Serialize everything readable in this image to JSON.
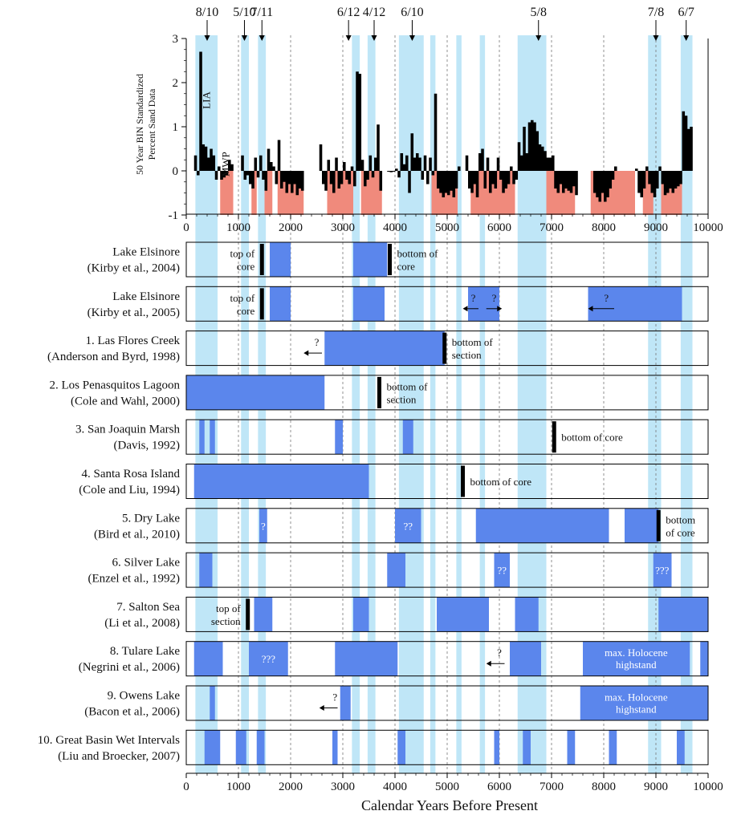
{
  "chart_data": {
    "type": "bar",
    "xlabel": "Calendar Years Before Present",
    "ylabel_line1": "50 Year BIN Standardized",
    "ylabel_line2": "Percent Sand Data",
    "xlim": [
      0,
      10000
    ],
    "ylim": [
      -1,
      3
    ],
    "x_ticks": [
      0,
      1000,
      2000,
      3000,
      4000,
      5000,
      6000,
      7000,
      8000,
      9000,
      10000
    ],
    "y_ticks": [
      -1,
      0,
      1,
      2,
      3
    ],
    "colors": {
      "bar": "#000000",
      "dry": "#f08a7c",
      "wet_highlight": "#bfe6f7",
      "wet_interval": "#5b86ec"
    },
    "highlight_bands": [
      [
        175,
        600
      ],
      [
        1050,
        1200
      ],
      [
        1375,
        1525
      ],
      [
        3175,
        3325
      ],
      [
        3475,
        3625
      ],
      [
        4075,
        4550
      ],
      [
        4675,
        4775
      ],
      [
        5175,
        5275
      ],
      [
        5625,
        5725
      ],
      [
        6350,
        6900
      ],
      [
        8850,
        9100
      ],
      [
        9475,
        9700
      ]
    ],
    "top_annotations": [
      {
        "label": "8/10",
        "x": 400
      },
      {
        "label": "5/10",
        "x": 1115
      },
      {
        "label": "7/11",
        "x": 1450
      },
      {
        "label": "6/12",
        "x": 3110
      },
      {
        "label": "4/12",
        "x": 3600
      },
      {
        "label": "6/10",
        "x": 4330
      },
      {
        "label": "5/8",
        "x": 6750
      },
      {
        "label": "7/8",
        "x": 9000
      },
      {
        "label": "6/7",
        "x": 9580
      }
    ],
    "panel_labels": [
      {
        "text": "LIA",
        "x": 450,
        "y": 1.6
      },
      {
        "text": "MWP",
        "x": 820,
        "y": 0.15
      }
    ],
    "dry_bands": [
      [
        650,
        900
      ],
      [
        1250,
        1350
      ],
      [
        1500,
        1650
      ],
      [
        1750,
        2250
      ],
      [
        2700,
        3200
      ],
      [
        3350,
        3750
      ],
      [
        4700,
        5200
      ],
      [
        5450,
        6300
      ],
      [
        6900,
        7450
      ],
      [
        7750,
        8600
      ],
      [
        8750,
        8950
      ],
      [
        9100,
        9500
      ]
    ],
    "series": [
      {
        "x": [
          175,
          225,
          275,
          325,
          375,
          425,
          475,
          525,
          575,
          625,
          675,
          725,
          775,
          825,
          875,
          1075,
          1125,
          1175,
          1225,
          1275,
          1325,
          1375,
          1425,
          1475,
          1525,
          1575,
          1625,
          1675,
          1725,
          1775,
          1825,
          1875,
          1925,
          1975,
          2025,
          2075,
          2125,
          2175,
          2225
        ],
        "values": [
          0.35,
          -0.1,
          2.7,
          0.6,
          0.55,
          0.3,
          0.5,
          0.35,
          -0.2,
          0.1,
          -0.2,
          -0.15,
          -0.1,
          0.25,
          0.15,
          0.35,
          -0.2,
          -0.1,
          -0.3,
          -0.4,
          0.3,
          -0.15,
          0.35,
          -0.2,
          -0.45,
          0.5,
          0.2,
          0.1,
          -0.3,
          0.7,
          -0.4,
          -0.25,
          -0.5,
          -0.3,
          -0.5,
          -0.3,
          -0.55,
          -0.4,
          -0.45
        ]
      },
      {
        "x": [
          2575,
          2625,
          2675,
          2725,
          2775,
          2825,
          2875,
          2925,
          2975,
          3025,
          3075,
          3125,
          3175,
          3225,
          3275,
          3325,
          3375,
          3425,
          3475,
          3525,
          3575,
          3625,
          3675,
          3725
        ],
        "values": [
          0.6,
          -0.3,
          -0.45,
          0.25,
          -0.3,
          -0.5,
          0.3,
          -0.4,
          -0.3,
          0.2,
          -0.2,
          -0.3,
          0.1,
          -0.35,
          2.25,
          2.2,
          0.25,
          -0.35,
          -0.2,
          0.35,
          -0.15,
          0.3,
          1.05,
          -0.45
        ]
      },
      {
        "x": [
          3875,
          3925,
          3975,
          4025,
          4075,
          4125,
          4175,
          4225,
          4275,
          4325,
          4375,
          4425,
          4475,
          4525,
          4575,
          4625,
          4675,
          4725,
          4775,
          4825,
          4875,
          4925,
          4975,
          5025,
          5075,
          5125,
          5175,
          5225
        ],
        "values": [
          -0.02,
          -0.03,
          -0.02,
          0.05,
          -0.15,
          0.4,
          0.15,
          0.35,
          -0.5,
          0.85,
          0.3,
          0.4,
          0.3,
          -0.2,
          0.35,
          -0.3,
          0.3,
          -0.1,
          1.75,
          -0.4,
          -0.5,
          -0.6,
          -0.5,
          -0.55,
          -0.45,
          -0.6,
          -0.4,
          0.1
        ]
      },
      {
        "x": [
          5375,
          5425,
          5475,
          5525,
          5575,
          5625,
          5675,
          5725,
          5775,
          5825,
          5875,
          5925,
          5975,
          6025,
          6075,
          6125,
          6175,
          6225,
          6275,
          6325,
          6375,
          6425,
          6475,
          6525,
          6575,
          6625,
          6675,
          6725,
          6775,
          6825,
          6875,
          6925,
          6975,
          7025,
          7075,
          7125,
          7175,
          7225,
          7275,
          7325,
          7375,
          7425,
          7475
        ],
        "values": [
          0.35,
          -0.4,
          -0.5,
          -0.3,
          -0.6,
          0.4,
          0.5,
          -0.4,
          0.3,
          -0.5,
          -0.3,
          -0.4,
          0.3,
          -0.2,
          -0.5,
          -0.4,
          -0.3,
          0.1,
          -0.3,
          -0.2,
          0.65,
          0.35,
          1.0,
          0.4,
          1.1,
          1.15,
          1.1,
          0.9,
          0.6,
          0.55,
          0.45,
          0.3,
          0.3,
          0.35,
          -0.4,
          -0.5,
          -0.3,
          -0.5,
          -0.4,
          -0.45,
          -0.5,
          -0.35,
          -0.55
        ]
      },
      {
        "x": [
          7825,
          7875,
          7925,
          7975,
          8025,
          8075,
          8125,
          8175,
          8225
        ],
        "values": [
          -0.5,
          -0.6,
          -0.7,
          -0.5,
          -0.7,
          -0.6,
          -0.4,
          -0.2,
          0.1
        ]
      },
      {
        "x": [
          8625,
          8675,
          8725,
          8775,
          8825,
          8875,
          8925,
          8975,
          9025,
          9075,
          9125,
          9175,
          9225,
          9275,
          9325,
          9375,
          9425,
          9475,
          9525,
          9575,
          9625,
          9675
        ],
        "values": [
          0.05,
          -0.5,
          -0.6,
          -0.4,
          0.1,
          -0.3,
          -0.5,
          -0.6,
          -0.4,
          0.1,
          -0.3,
          -0.55,
          -0.5,
          -0.4,
          -0.5,
          -0.4,
          -0.35,
          -0.3,
          1.35,
          1.25,
          0.95,
          1.0
        ]
      }
    ],
    "rows": [
      {
        "name": "Lake Elsinore",
        "cite": "(Kirby et al., 2004)",
        "intervals": [
          [
            1600,
            2000
          ],
          [
            3200,
            3850
          ]
        ],
        "markers": [
          {
            "x": 1450,
            "side": "left",
            "lines": [
              "top of",
              "core"
            ]
          },
          {
            "x": 3900,
            "side": "right",
            "lines": [
              "bottom of",
              "core"
            ]
          }
        ],
        "qmarks": [],
        "arrows": []
      },
      {
        "name": "Lake Elsinore",
        "cite": "(Kirby et al., 2005)",
        "intervals": [
          [
            1600,
            2000
          ],
          [
            3200,
            3800
          ],
          [
            5400,
            6000
          ],
          [
            7700,
            9500
          ]
        ],
        "markers": [
          {
            "x": 1450,
            "side": "left",
            "lines": [
              "top of",
              "core"
            ]
          }
        ],
        "qmarks": [
          {
            "x": 5500,
            "text": "?",
            "dark": true
          },
          {
            "x": 5900,
            "text": "?",
            "dark": true
          },
          {
            "x": 8050,
            "text": "?",
            "dark": true
          }
        ],
        "arrows": [
          {
            "from": 5600,
            "to": 5300
          },
          {
            "from": 5750,
            "to": 6050
          },
          {
            "from": 8200,
            "to": 7700
          }
        ]
      },
      {
        "name": "1. Las Flores Creek",
        "cite": "(Anderson and Byrd, 1998)",
        "intervals": [
          [
            2650,
            4950
          ]
        ],
        "markers": [
          {
            "x": 4950,
            "side": "right",
            "lines": [
              "bottom of",
              "section"
            ]
          }
        ],
        "qmarks": [
          {
            "x": 2500,
            "text": "?",
            "dark": true
          }
        ],
        "arrows": [
          {
            "from": 2600,
            "to": 2250
          }
        ]
      },
      {
        "name": "2. Los Penasquitos Lagoon",
        "cite": "(Cole and Wahl, 2000)",
        "intervals": [
          [
            0,
            2650
          ]
        ],
        "markers": [
          {
            "x": 3700,
            "side": "right",
            "lines": [
              "bottom of",
              "section"
            ]
          }
        ],
        "qmarks": [],
        "arrows": []
      },
      {
        "name": "3. San Joaquin Marsh",
        "cite": "(Davis, 1992)",
        "intervals": [
          [
            250,
            350
          ],
          [
            450,
            550
          ],
          [
            2850,
            3000
          ],
          [
            4150,
            4350
          ]
        ],
        "markers": [
          {
            "x": 7050,
            "side": "right",
            "lines": [
              "bottom of core"
            ]
          }
        ],
        "qmarks": [],
        "arrows": []
      },
      {
        "name": "4. Santa Rosa Island",
        "cite": "(Cole and Liu, 1994)",
        "intervals": [
          [
            150,
            3500
          ]
        ],
        "markers": [
          {
            "x": 5300,
            "side": "right",
            "lines": [
              "bottom of core"
            ]
          }
        ],
        "qmarks": [],
        "arrows": []
      },
      {
        "name": "5. Dry Lake",
        "cite": "(Bird et al., 2010)",
        "intervals": [
          [
            1400,
            1550
          ],
          [
            4000,
            4500
          ],
          [
            5550,
            8100
          ],
          [
            8400,
            9050
          ]
        ],
        "markers": [
          {
            "x": 9050,
            "side": "right",
            "lines": [
              "bottom",
              "of core"
            ]
          }
        ],
        "qmarks": [
          {
            "x": 1475,
            "text": "?",
            "dark": false
          },
          {
            "x": 4250,
            "text": "??",
            "dark": false
          }
        ],
        "arrows": []
      },
      {
        "name": "6. Silver Lake",
        "cite": "(Enzel et al., 1992)",
        "intervals": [
          [
            250,
            500
          ],
          [
            3850,
            4200
          ],
          [
            5900,
            6200
          ],
          [
            8950,
            9300
          ]
        ],
        "markers": [],
        "qmarks": [
          {
            "x": 6050,
            "text": "??",
            "dark": false
          },
          {
            "x": 9120,
            "text": "???",
            "dark": false
          }
        ],
        "arrows": []
      },
      {
        "name": "7. Salton Sea",
        "cite": "(Li et al., 2008)",
        "intervals": [
          [
            1300,
            1650
          ],
          [
            3200,
            3500
          ],
          [
            4800,
            5800
          ],
          [
            6300,
            6750
          ],
          [
            9050,
            10000
          ]
        ],
        "markers": [
          {
            "x": 1180,
            "side": "left",
            "lines": [
              "top of",
              "section"
            ]
          }
        ],
        "qmarks": [],
        "arrows": []
      },
      {
        "name": "8. Tulare Lake",
        "cite": "(Negrini et al., 2006)",
        "intervals": [
          [
            150,
            700
          ],
          [
            1200,
            1950
          ],
          [
            2850,
            4050
          ],
          [
            6200,
            6800
          ],
          [
            7600,
            9650
          ],
          [
            9850,
            10000
          ]
        ],
        "markers": [],
        "qmarks": [
          {
            "x": 1575,
            "text": "???",
            "dark": false
          },
          {
            "x": 6000,
            "text": "?",
            "dark": true
          }
        ],
        "arrows": [
          {
            "from": 6100,
            "to": 5750
          }
        ],
        "box_text": {
          "lines": [
            "max. Holocene",
            "highstand"
          ],
          "x": 8620
        }
      },
      {
        "name": "9. Owens Lake",
        "cite": "(Bacon et al., 2006)",
        "intervals": [
          [
            450,
            550
          ],
          [
            2950,
            3150
          ],
          [
            7550,
            10000
          ]
        ],
        "markers": [],
        "qmarks": [
          {
            "x": 2850,
            "text": "?",
            "dark": true
          }
        ],
        "arrows": [
          {
            "from": 2900,
            "to": 2550
          }
        ],
        "box_text": {
          "lines": [
            "max. Holocene",
            "highstand"
          ],
          "x": 8620
        }
      },
      {
        "name": "10. Great Basin Wet Intervals",
        "cite": "(Liu and Broecker, 2007)",
        "intervals": [
          [
            350,
            650
          ],
          [
            950,
            1150
          ],
          [
            1350,
            1500
          ],
          [
            2800,
            2900
          ],
          [
            4050,
            4200
          ],
          [
            5900,
            6000
          ],
          [
            6450,
            6600
          ],
          [
            7300,
            7450
          ],
          [
            8100,
            8250
          ],
          [
            9400,
            9550
          ]
        ],
        "markers": [],
        "qmarks": [],
        "arrows": []
      }
    ]
  }
}
